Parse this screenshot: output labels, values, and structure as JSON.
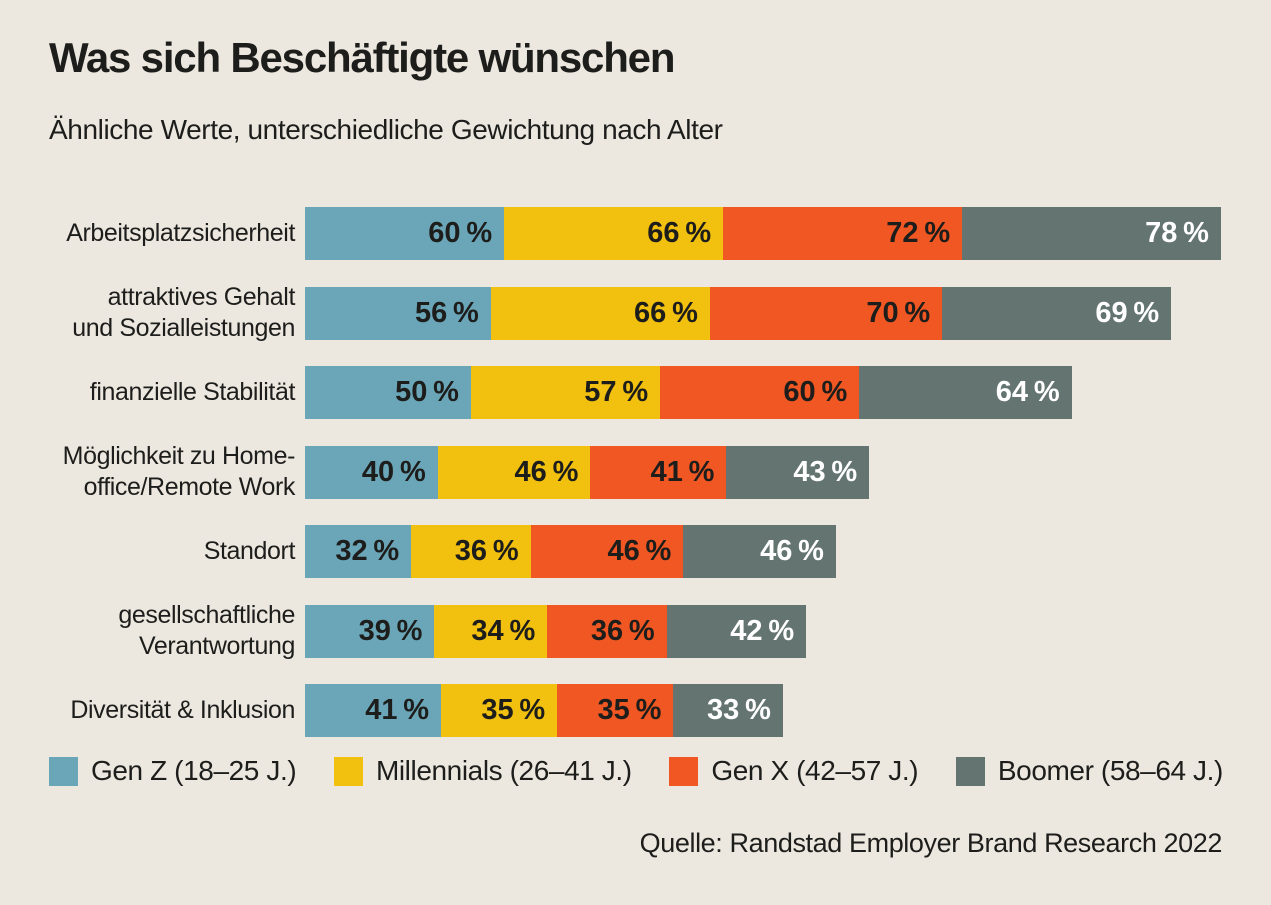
{
  "header": {
    "title": "Was sich Beschäftigte wünschen",
    "subtitle": "Ähnliche Werte, unterschiedliche Gewichtung nach Alter"
  },
  "source": "Quelle: Randstad Employer Brand Research 2022",
  "colors": {
    "background": "#ece8e0",
    "text": "#1d1d1b",
    "gen_z_blue": "#6aa6b8",
    "millennials_yellow": "#f2c00e",
    "gen_x_orange": "#f05722",
    "boomer_gray": "#647470",
    "value_label_dark": "#1d1d1b",
    "value_label_light": "#ffffff"
  },
  "chart_data": {
    "type": "bar",
    "variant": "horizontal-stacked",
    "unit": "%",
    "value_suffix": " %",
    "legend_position": "bottom",
    "axes": "none — values printed inside segments, bars left-aligned at common baseline",
    "categories": [
      "Arbeitsplatzsicherheit",
      "attraktives Gehalt und Sozialleistungen",
      "finanzielle Stabilität",
      "Möglichkeit zu Home-office/Remote Work",
      "Standort",
      "gesellschaftliche Verantwortung",
      "Diversität & Inklusion"
    ],
    "category_label_lines": [
      [
        "Arbeitsplatzsicherheit"
      ],
      [
        "attraktives Gehalt",
        "und Sozialleistungen"
      ],
      [
        "finanzielle Stabilität"
      ],
      [
        "Möglichkeit zu Home-",
        "office/Remote Work"
      ],
      [
        "Standort"
      ],
      [
        "gesellschaftliche",
        "Verantwortung"
      ],
      [
        "Diversität & Inklusion"
      ]
    ],
    "series": [
      {
        "name": "Gen Z (18–25 J.)",
        "color": "#6aa6b8",
        "value_label_color": "#1d1d1b",
        "values": [
          60,
          56,
          50,
          40,
          32,
          39,
          41
        ]
      },
      {
        "name": "Millennials (26–41 J.)",
        "color": "#f2c00e",
        "value_label_color": "#1d1d1b",
        "values": [
          66,
          66,
          57,
          46,
          36,
          34,
          35
        ]
      },
      {
        "name": "Gen X (42–57 J.)",
        "color": "#f05722",
        "value_label_color": "#1d1d1b",
        "values": [
          72,
          70,
          60,
          41,
          46,
          36,
          35
        ]
      },
      {
        "name": "Boomer (58–64 J.)",
        "color": "#647470",
        "value_label_color": "#ffffff",
        "values": [
          78,
          69,
          64,
          43,
          46,
          42,
          33
        ]
      }
    ]
  }
}
